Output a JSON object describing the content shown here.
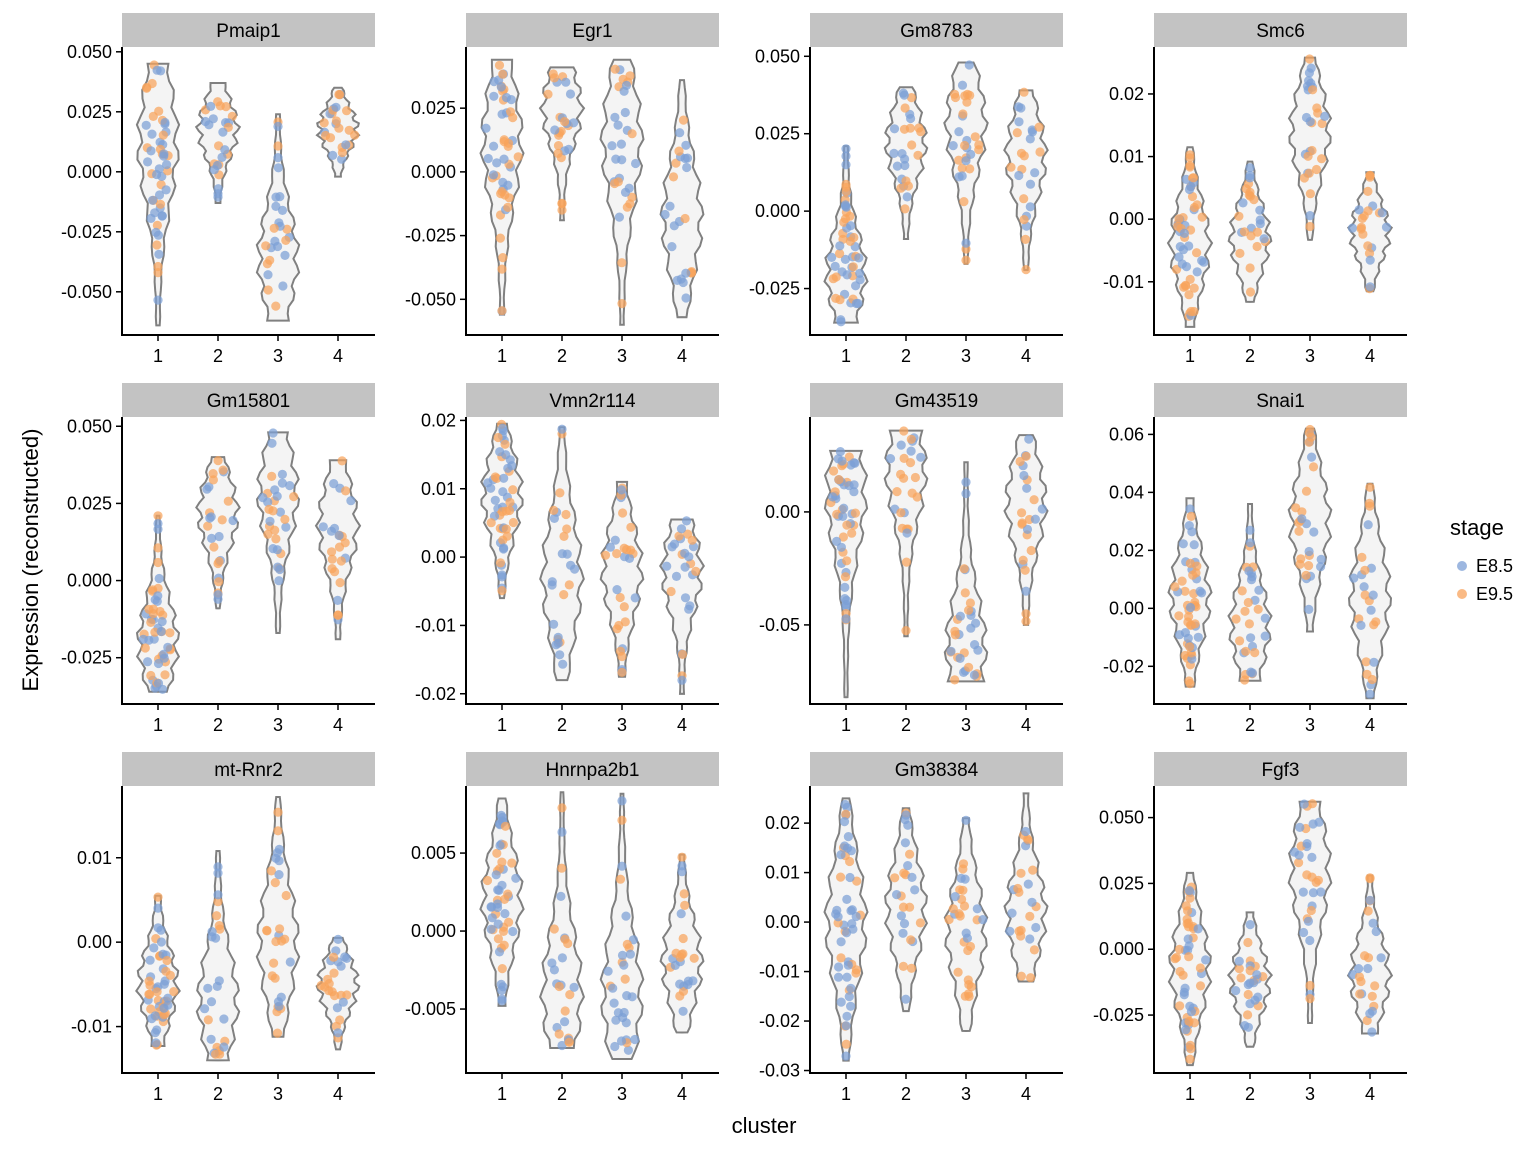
{
  "chart_data": {
    "type": "violin",
    "xlabel": "cluster",
    "ylabel": "Expression (reconstructed)",
    "legend": {
      "title": "stage",
      "placement": "right",
      "entries": [
        {
          "label": "E8.5",
          "color": "#7c9fd6"
        },
        {
          "label": "E9.5",
          "color": "#f8a35c"
        }
      ]
    },
    "x_categories": [
      "1",
      "2",
      "3",
      "4"
    ],
    "violin_outline_color": "#808080",
    "violin_fill_color": "#f4f4f4",
    "panels": [
      {
        "title": "Pmaip1",
        "ylim": [
          -0.068,
          0.052
        ],
        "yticks": [
          0.05,
          0.025,
          0.0,
          -0.025,
          -0.05
        ],
        "ytick_labels": [
          "0.050",
          "0.025",
          "0.000",
          "-0.025",
          "-0.050"
        ],
        "violins": [
          {
            "cluster": "1",
            "min": -0.064,
            "max": 0.045,
            "median": 0.012,
            "n": 50
          },
          {
            "cluster": "2",
            "min": -0.013,
            "max": 0.037,
            "median": 0.018,
            "n": 25
          },
          {
            "cluster": "3",
            "min": -0.062,
            "max": 0.024,
            "median": -0.036,
            "n": 26
          },
          {
            "cluster": "4",
            "min": -0.002,
            "max": 0.035,
            "median": 0.018,
            "n": 24
          }
        ]
      },
      {
        "title": "Egr1",
        "ylim": [
          -0.064,
          0.049
        ],
        "yticks": [
          0.025,
          0.0,
          -0.025,
          -0.05
        ],
        "ytick_labels": [
          "0.025",
          "0.000",
          "-0.025",
          "-0.050"
        ],
        "violins": [
          {
            "cluster": "1",
            "min": -0.056,
            "max": 0.044,
            "median": 0.012,
            "n": 48
          },
          {
            "cluster": "2",
            "min": -0.019,
            "max": 0.041,
            "median": 0.025,
            "n": 25
          },
          {
            "cluster": "3",
            "min": -0.06,
            "max": 0.044,
            "median": 0.012,
            "n": 30
          },
          {
            "cluster": "4",
            "min": -0.057,
            "max": 0.036,
            "median": -0.018,
            "n": 24
          }
        ]
      },
      {
        "title": "Gm8783",
        "ylim": [
          -0.04,
          0.053
        ],
        "yticks": [
          0.05,
          0.025,
          0.0,
          -0.025
        ],
        "ytick_labels": [
          "0.050",
          "0.025",
          "0.000",
          "-0.025"
        ],
        "violins": [
          {
            "cluster": "1",
            "min": -0.036,
            "max": 0.021,
            "median": -0.02,
            "n": 50
          },
          {
            "cluster": "2",
            "min": -0.009,
            "max": 0.04,
            "median": 0.022,
            "n": 25
          },
          {
            "cluster": "3",
            "min": -0.017,
            "max": 0.048,
            "median": 0.028,
            "n": 30
          },
          {
            "cluster": "4",
            "min": -0.019,
            "max": 0.039,
            "median": 0.018,
            "n": 24
          }
        ]
      },
      {
        "title": "Smc6",
        "ylim": [
          -0.0185,
          0.0275
        ],
        "yticks": [
          0.02,
          0.01,
          0.0,
          -0.01
        ],
        "ytick_labels": [
          "0.02",
          "0.01",
          "0.00",
          "-0.01"
        ],
        "violins": [
          {
            "cluster": "1",
            "min": -0.0172,
            "max": 0.0115,
            "median": -0.004,
            "n": 50
          },
          {
            "cluster": "2",
            "min": -0.0132,
            "max": 0.0092,
            "median": -0.003,
            "n": 25
          },
          {
            "cluster": "3",
            "min": -0.0033,
            "max": 0.0258,
            "median": 0.014,
            "n": 28
          },
          {
            "cluster": "4",
            "min": -0.0115,
            "max": 0.0075,
            "median": -0.002,
            "n": 22
          }
        ]
      },
      {
        "title": "Gm15801",
        "ylim": [
          -0.04,
          0.053
        ],
        "yticks": [
          0.05,
          0.025,
          0.0,
          -0.025
        ],
        "ytick_labels": [
          "0.050",
          "0.025",
          "0.000",
          "-0.025"
        ],
        "violins": [
          {
            "cluster": "1",
            "min": -0.036,
            "max": 0.021,
            "median": -0.02,
            "n": 50
          },
          {
            "cluster": "2",
            "min": -0.009,
            "max": 0.04,
            "median": 0.022,
            "n": 25
          },
          {
            "cluster": "3",
            "min": -0.017,
            "max": 0.048,
            "median": 0.028,
            "n": 30
          },
          {
            "cluster": "4",
            "min": -0.019,
            "max": 0.039,
            "median": 0.018,
            "n": 24
          }
        ]
      },
      {
        "title": "Vmn2r114",
        "ylim": [
          -0.0215,
          0.0205
        ],
        "yticks": [
          0.02,
          0.01,
          0.0,
          -0.01,
          -0.02
        ],
        "ytick_labels": [
          "0.02",
          "0.01",
          "0.00",
          "-0.01",
          "-0.02"
        ],
        "violins": [
          {
            "cluster": "1",
            "min": -0.006,
            "max": 0.0195,
            "median": 0.009,
            "n": 50
          },
          {
            "cluster": "2",
            "min": -0.018,
            "max": 0.019,
            "median": -0.003,
            "n": 25
          },
          {
            "cluster": "3",
            "min": -0.0175,
            "max": 0.011,
            "median": -0.002,
            "n": 30
          },
          {
            "cluster": "4",
            "min": -0.02,
            "max": 0.0055,
            "median": -0.002,
            "n": 26
          }
        ]
      },
      {
        "title": "Gm43519",
        "ylim": [
          -0.085,
          0.042
        ],
        "yticks": [
          0.0,
          -0.05
        ],
        "ytick_labels": [
          "0.00",
          "-0.05"
        ],
        "violins": [
          {
            "cluster": "1",
            "min": -0.082,
            "max": 0.027,
            "median": 0.008,
            "n": 50
          },
          {
            "cluster": "2",
            "min": -0.055,
            "max": 0.036,
            "median": 0.018,
            "n": 25
          },
          {
            "cluster": "3",
            "min": -0.075,
            "max": 0.022,
            "median": -0.06,
            "n": 30
          },
          {
            "cluster": "4",
            "min": -0.05,
            "max": 0.034,
            "median": 0.004,
            "n": 24
          }
        ]
      },
      {
        "title": "Snai1",
        "ylim": [
          -0.033,
          0.066
        ],
        "yticks": [
          0.06,
          0.04,
          0.02,
          0.0,
          -0.02
        ],
        "ytick_labels": [
          "0.06",
          "0.04",
          "0.02",
          "0.00",
          "-0.02"
        ],
        "violins": [
          {
            "cluster": "1",
            "min": -0.027,
            "max": 0.038,
            "median": 0.004,
            "n": 50
          },
          {
            "cluster": "2",
            "min": -0.025,
            "max": 0.036,
            "median": -0.006,
            "n": 30
          },
          {
            "cluster": "3",
            "min": -0.008,
            "max": 0.062,
            "median": 0.03,
            "n": 28
          },
          {
            "cluster": "4",
            "min": -0.031,
            "max": 0.043,
            "median": 0.004,
            "n": 24
          }
        ]
      },
      {
        "title": "mt-Rnr2",
        "ylim": [
          -0.0155,
          0.0185
        ],
        "yticks": [
          0.01,
          0.0,
          -0.01
        ],
        "ytick_labels": [
          "0.01",
          "0.00",
          "-0.01"
        ],
        "violins": [
          {
            "cluster": "1",
            "min": -0.0123,
            "max": 0.0055,
            "median": -0.005,
            "n": 50
          },
          {
            "cluster": "2",
            "min": -0.014,
            "max": 0.0108,
            "median": -0.007,
            "n": 25
          },
          {
            "cluster": "3",
            "min": -0.0112,
            "max": 0.0172,
            "median": 0.0,
            "n": 28
          },
          {
            "cluster": "4",
            "min": -0.0127,
            "max": 0.0005,
            "median": -0.005,
            "n": 24
          }
        ]
      },
      {
        "title": "Hnrnpa2b1",
        "ylim": [
          -0.0091,
          0.0093
        ],
        "yticks": [
          0.005,
          0.0,
          -0.005
        ],
        "ytick_labels": [
          "0.005",
          "0.000",
          "-0.005"
        ],
        "violins": [
          {
            "cluster": "1",
            "min": -0.0048,
            "max": 0.0085,
            "median": 0.002,
            "n": 50
          },
          {
            "cluster": "2",
            "min": -0.0075,
            "max": 0.0089,
            "median": -0.004,
            "n": 25
          },
          {
            "cluster": "3",
            "min": -0.0082,
            "max": 0.0088,
            "median": -0.004,
            "n": 30
          },
          {
            "cluster": "4",
            "min": -0.0065,
            "max": 0.0049,
            "median": -0.002,
            "n": 24
          }
        ]
      },
      {
        "title": "Gm38384",
        "ylim": [
          -0.0305,
          0.0275
        ],
        "yticks": [
          0.02,
          0.01,
          0.0,
          -0.01,
          -0.02,
          -0.03
        ],
        "ytick_labels": [
          "0.02",
          "0.01",
          "0.00",
          "-0.01",
          "-0.02",
          "-0.03"
        ],
        "violins": [
          {
            "cluster": "1",
            "min": -0.028,
            "max": 0.025,
            "median": 0.0,
            "n": 50
          },
          {
            "cluster": "2",
            "min": -0.018,
            "max": 0.023,
            "median": 0.003,
            "n": 25
          },
          {
            "cluster": "3",
            "min": -0.022,
            "max": 0.021,
            "median": -0.002,
            "n": 30
          },
          {
            "cluster": "4",
            "min": -0.012,
            "max": 0.026,
            "median": 0.002,
            "n": 24
          }
        ]
      },
      {
        "title": "Fgf3",
        "ylim": [
          -0.047,
          0.062
        ],
        "yticks": [
          0.05,
          0.025,
          0.0,
          -0.025
        ],
        "ytick_labels": [
          "0.050",
          "0.025",
          "0.000",
          "-0.025"
        ],
        "violins": [
          {
            "cluster": "1",
            "min": -0.044,
            "max": 0.029,
            "median": -0.007,
            "n": 50
          },
          {
            "cluster": "2",
            "min": -0.037,
            "max": 0.014,
            "median": -0.012,
            "n": 25
          },
          {
            "cluster": "3",
            "min": -0.028,
            "max": 0.056,
            "median": 0.03,
            "n": 30
          },
          {
            "cluster": "4",
            "min": -0.032,
            "max": 0.028,
            "median": -0.01,
            "n": 24
          }
        ]
      }
    ]
  }
}
